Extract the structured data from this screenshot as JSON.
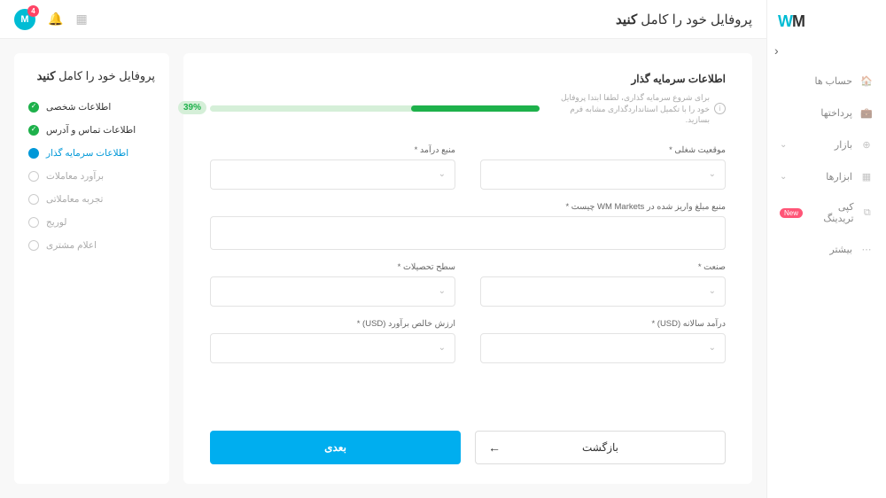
{
  "logo": {
    "w": "W",
    "m": "M"
  },
  "nav": {
    "items": [
      {
        "label": "حساب ها",
        "icon": "home"
      },
      {
        "label": "پرداختها",
        "icon": "wallet"
      },
      {
        "label": "بازار",
        "icon": "globe",
        "expand": true
      },
      {
        "label": "ابزارها",
        "icon": "grid",
        "expand": true
      },
      {
        "label": "کپی تریدینگ",
        "icon": "copy",
        "badge": "New"
      },
      {
        "label": "بیشتر",
        "icon": "dots"
      }
    ]
  },
  "topbar": {
    "title_light": "پروفایل خود را کامل",
    "title_bold": "کنید",
    "avatar_letter": "M",
    "avatar_badge": "4"
  },
  "steps": {
    "title_light": "پروفایل خود را کامل",
    "title_bold": "کنید",
    "items": [
      {
        "label": "اطلاعات شخصی",
        "state": "done"
      },
      {
        "label": "اطلاعات تماس و آدرس",
        "state": "done"
      },
      {
        "label": "اطلاعات سرمایه گذار",
        "state": "active"
      },
      {
        "label": "برآورد معاملات",
        "state": "pending"
      },
      {
        "label": "تجربه معاملاتی",
        "state": "pending"
      },
      {
        "label": "لوریج",
        "state": "pending"
      },
      {
        "label": "اعلام مشتری",
        "state": "pending"
      }
    ]
  },
  "form": {
    "heading": "اطلاعات سرمایه گذار",
    "hint": "برای شروع سرمایه گذاری، لطفا ابتدا پروفایل خود را با تکمیل استاندارد‌گذاری مشابه فرم بسازید.",
    "progress_pct": 39,
    "progress_label": "39%",
    "fields": {
      "job": "موقعیت شغلی *",
      "income_src": "منبع درآمد *",
      "deposit_src": "منبع مبلغ واریز شده در WM Markets چیست *",
      "industry": "صنعت *",
      "education": "سطح تحصیلات *",
      "annual_income": "درآمد سالانه (USD) *",
      "net_worth": "ارزش خالص برآورد (USD) *"
    },
    "btn_back": "بازگشت",
    "btn_next": "بعدی"
  },
  "colors": {
    "primary": "#00aeef",
    "success": "#1eb14b",
    "success_light": "#d5efd8",
    "badge": "#ff5577"
  }
}
